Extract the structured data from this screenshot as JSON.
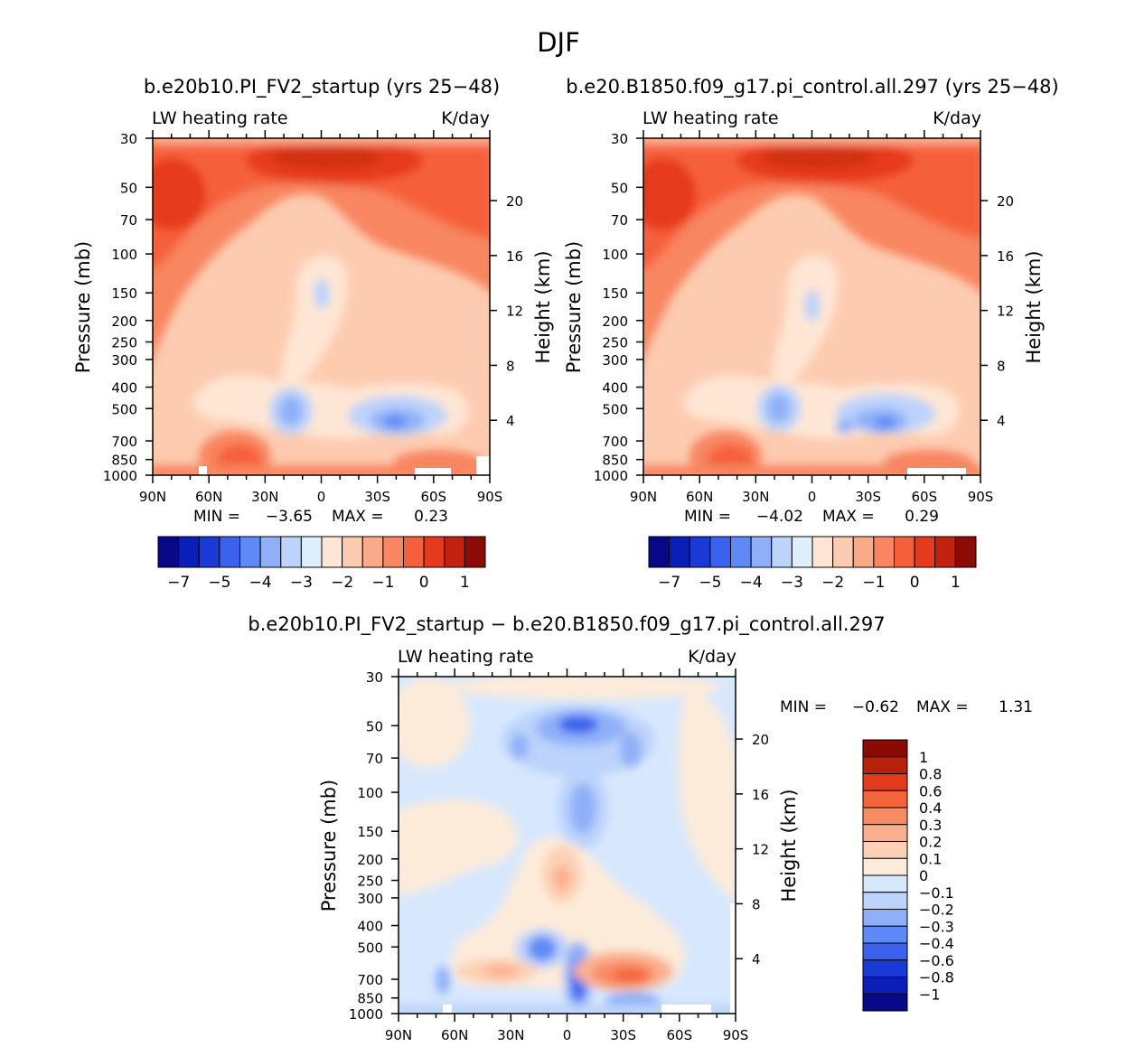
{
  "figure": {
    "title": "DJF"
  },
  "colors": {
    "abs_scale": [
      "#08088a",
      "#0a1fb8",
      "#1a3ad8",
      "#3a62ef",
      "#5e8af7",
      "#8fb0f8",
      "#bcd3fb",
      "#dfeefd",
      "#fee6d4",
      "#fdcbb0",
      "#fbaa88",
      "#f88660",
      "#f5603a",
      "#e63a1f",
      "#c2220f",
      "#8c0b06"
    ],
    "diff_scale": [
      "#08088a",
      "#0a1fb8",
      "#1a3ad8",
      "#3a62ef",
      "#5e8af7",
      "#8fb0f8",
      "#bcd3fb",
      "#d7e8fd",
      "#fdebd9",
      "#fcd1b6",
      "#fab08f",
      "#f88b63",
      "#f5653c",
      "#e23a1c",
      "#b9200c",
      "#8a0a06"
    ]
  },
  "chart_data": [
    {
      "type": "heatmap",
      "case_title": "b.e20b10.PI_FV2_startup (yrs 25−48)",
      "variable": "LW heating rate",
      "units": "K/day",
      "xlabel": "",
      "ylabel": "Pressure (mb)",
      "ylabel_right": "Height (km)",
      "x_ticks": [
        "90N",
        "60N",
        "30N",
        "0",
        "30S",
        "60S",
        "90S"
      ],
      "y_ticks": [
        "30",
        "50",
        "70",
        "100",
        "150",
        "200",
        "250",
        "300",
        "400",
        "500",
        "700",
        "850",
        "1000"
      ],
      "y_ticks_right": [
        "20",
        "16",
        "12",
        "8",
        "4"
      ],
      "xlim": [
        "90N",
        "90S"
      ],
      "ylim": [
        1000,
        30
      ],
      "y_scale": "log",
      "min_text": "MIN =",
      "min_value": "−3.65",
      "max_text": "MAX =",
      "max_value": "0.23",
      "colorbar_labels": [
        "−7",
        "−5",
        "−4",
        "−3",
        "−2",
        "−1",
        "0",
        "1"
      ]
    },
    {
      "type": "heatmap",
      "case_title": "b.e20.B1850.f09_g17.pi_control.all.297 (yrs 25−48)",
      "variable": "LW heating rate",
      "units": "K/day",
      "xlabel": "",
      "ylabel": "Pressure (mb)",
      "ylabel_right": "Height (km)",
      "x_ticks": [
        "90N",
        "60N",
        "30N",
        "0",
        "30S",
        "60S",
        "90S"
      ],
      "y_ticks": [
        "30",
        "50",
        "70",
        "100",
        "150",
        "200",
        "250",
        "300",
        "400",
        "500",
        "700",
        "850",
        "1000"
      ],
      "y_ticks_right": [
        "20",
        "16",
        "12",
        "8",
        "4"
      ],
      "xlim": [
        "90N",
        "90S"
      ],
      "ylim": [
        1000,
        30
      ],
      "y_scale": "log",
      "min_text": "MIN =",
      "min_value": "−4.02",
      "max_text": "MAX =",
      "max_value": "0.29",
      "colorbar_labels": [
        "−7",
        "−5",
        "−4",
        "−3",
        "−2",
        "−1",
        "0",
        "1"
      ]
    },
    {
      "type": "heatmap",
      "case_title": "b.e20b10.PI_FV2_startup − b.e20.B1850.f09_g17.pi_control.all.297",
      "variable": "LW heating rate",
      "units": "K/day",
      "xlabel": "",
      "ylabel": "Pressure (mb)",
      "ylabel_right": "Height (km)",
      "x_ticks": [
        "90N",
        "60N",
        "30N",
        "0",
        "30S",
        "60S",
        "90S"
      ],
      "y_ticks": [
        "30",
        "50",
        "70",
        "100",
        "150",
        "200",
        "250",
        "300",
        "400",
        "500",
        "700",
        "850",
        "1000"
      ],
      "y_ticks_right": [
        "20",
        "16",
        "12",
        "8",
        "4"
      ],
      "xlim": [
        "90N",
        "90S"
      ],
      "ylim": [
        1000,
        30
      ],
      "y_scale": "log",
      "min_text": "MIN =",
      "min_value": "−0.62",
      "max_text": "MAX =",
      "max_value": "1.31",
      "colorbar_labels": [
        "1",
        "0.8",
        "0.6",
        "0.4",
        "0.3",
        "0.2",
        "0.1",
        "0",
        "−0.1",
        "−0.2",
        "−0.3",
        "−0.4",
        "−0.6",
        "−0.8",
        "−1"
      ]
    }
  ]
}
